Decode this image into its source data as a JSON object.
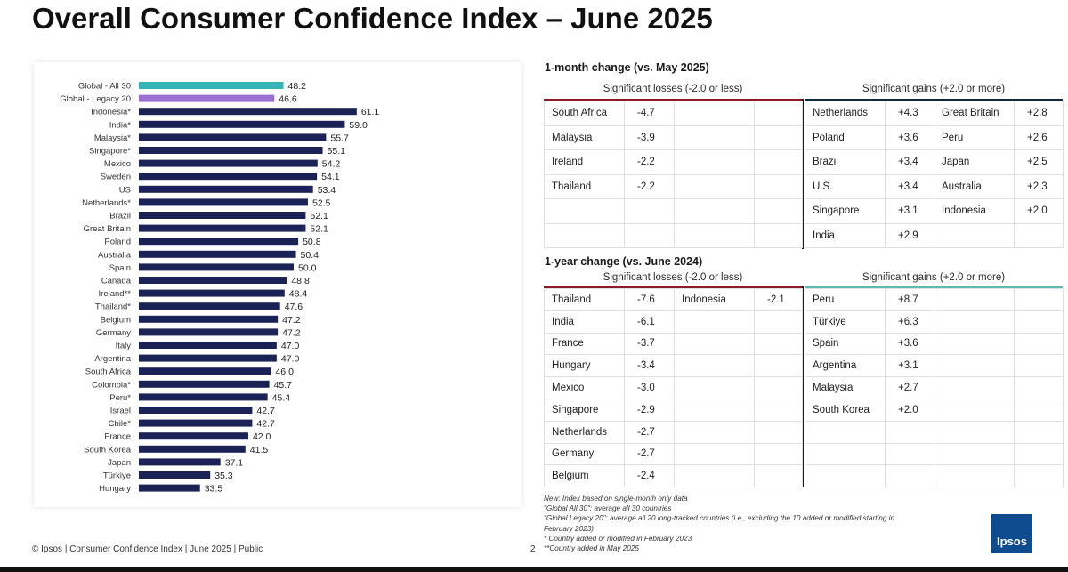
{
  "title": "Overall Consumer Confidence Index – June 2025",
  "chart_data": {
    "type": "bar",
    "orientation": "horizontal",
    "title": "",
    "xlim": [
      0,
      70
    ],
    "colors": {
      "global_all": "#35b3b5",
      "global_legacy": "#9b6fd1",
      "country": "#1b2356"
    },
    "categories": [
      "Global - All 30",
      "Global - Legacy 20",
      "Indonesia*",
      "India*",
      "Malaysia*",
      "Singapore*",
      "Mexico",
      "Sweden",
      "US",
      "Netherlands*",
      "Brazil",
      "Great Britain",
      "Poland",
      "Australia",
      "Spain",
      "Canada",
      "Ireland**",
      "Thailand*",
      "Belgium",
      "Germany",
      "Italy",
      "Argentina",
      "South Africa",
      "Colombia*",
      "Peru*",
      "Israel",
      "Chile*",
      "France",
      "South Korea",
      "Japan",
      "Türkiye",
      "Hungary"
    ],
    "values": [
      48.2,
      46.6,
      61.1,
      59.0,
      55.7,
      55.1,
      54.2,
      54.1,
      53.4,
      52.5,
      52.1,
      52.1,
      50.8,
      50.4,
      50.0,
      48.8,
      48.4,
      47.6,
      47.2,
      47.2,
      47.0,
      47.0,
      46.0,
      45.7,
      45.4,
      42.7,
      42.7,
      42.0,
      41.5,
      37.1,
      35.3,
      33.5
    ],
    "value_labels": [
      "48.2",
      "46.6",
      "61.1",
      "59.0",
      "55.7",
      "55.1",
      "54.2",
      "54.1",
      "53.4",
      "52.5",
      "52.1",
      "52.1",
      "50.8",
      "50.4",
      "50.0",
      "48.8",
      "48.4",
      "47.6",
      "47.2",
      "47.2",
      "47.0",
      "47.0",
      "46.0",
      "45.7",
      "45.4",
      "42.7",
      "42.7",
      "42.0",
      "41.5",
      "37.1",
      "35.3",
      "33.5"
    ]
  },
  "month": {
    "title": "1-month change (vs. May 2025)",
    "losses_title": "Significant losses (-2.0 or less)",
    "gains_title": "Significant gains (+2.0 or more)",
    "losses": [
      [
        "South Africa",
        "-4.7",
        "",
        ""
      ],
      [
        "Malaysia",
        "-3.9",
        "",
        ""
      ],
      [
        "Ireland",
        "-2.2",
        "",
        ""
      ],
      [
        "Thailand",
        "-2.2",
        "",
        ""
      ],
      [
        "",
        "",
        "",
        ""
      ],
      [
        "",
        "",
        "",
        ""
      ]
    ],
    "gains": [
      [
        "Netherlands",
        "+4.3",
        "Great Britain",
        "+2.8"
      ],
      [
        "Poland",
        "+3.6",
        "Peru",
        "+2.6"
      ],
      [
        "Brazil",
        "+3.4",
        "Japan",
        "+2.5"
      ],
      [
        "U.S.",
        "+3.4",
        "Australia",
        "+2.3"
      ],
      [
        "Singapore",
        "+3.1",
        "Indonesia",
        "+2.0"
      ],
      [
        "India",
        "+2.9",
        "",
        ""
      ]
    ]
  },
  "year": {
    "title": "1-year change (vs. June 2024)",
    "losses_title": "Significant losses (-2.0 or less)",
    "gains_title": "Significant gains (+2.0 or more)",
    "losses": [
      [
        "Thailand",
        "-7.6",
        "Indonesia",
        "-2.1"
      ],
      [
        "India",
        "-6.1",
        "",
        ""
      ],
      [
        "France",
        "-3.7",
        "",
        ""
      ],
      [
        "Hungary",
        "-3.4",
        "",
        ""
      ],
      [
        "Mexico",
        "-3.0",
        "",
        ""
      ],
      [
        "Singapore",
        "-2.9",
        "",
        ""
      ],
      [
        "Netherlands",
        "-2.7",
        "",
        ""
      ],
      [
        "Germany",
        "-2.7",
        "",
        ""
      ],
      [
        "Belgium",
        "-2.4",
        "",
        ""
      ]
    ],
    "gains": [
      [
        "Peru",
        "+8.7",
        "",
        ""
      ],
      [
        "Türkiye",
        "+6.3",
        "",
        ""
      ],
      [
        "Spain",
        "+3.6",
        "",
        ""
      ],
      [
        "Argentina",
        "+3.1",
        "",
        ""
      ],
      [
        "Malaysia",
        "+2.7",
        "",
        ""
      ],
      [
        "South Korea",
        "+2.0",
        "",
        ""
      ],
      [
        "",
        "",
        "",
        ""
      ],
      [
        "",
        "",
        "",
        ""
      ],
      [
        "",
        "",
        "",
        ""
      ]
    ]
  },
  "notes": [
    "New: Index based on single-month only data",
    "\"Global All 30\": average all 30 countries",
    "\"Global Legacy 20\": average all 20 long-tracked countries (i.e., excluding the 10 added or modified starting in February 2023)",
    "* Country added or modified in February 2023",
    "**Country added in May 2025"
  ],
  "footer": "© Ipsos | Consumer Confidence Index | June 2025 | Public",
  "page_number": "2",
  "logo_text": "Ipsos"
}
